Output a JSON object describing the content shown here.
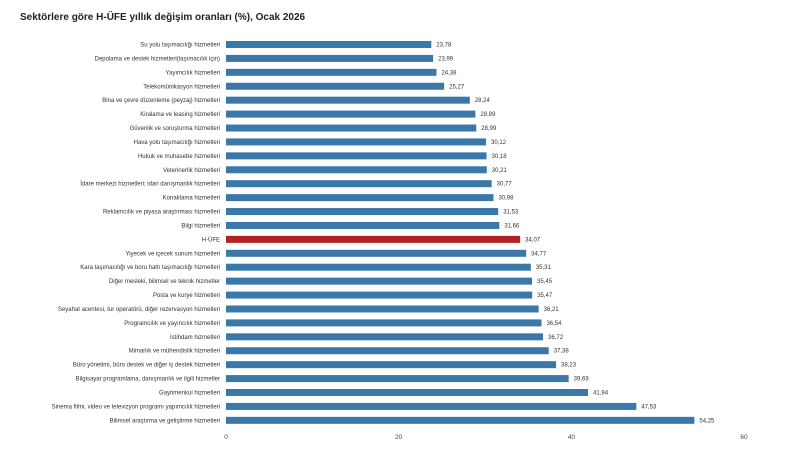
{
  "chart_data": {
    "type": "bar",
    "orientation": "horizontal",
    "title": "Sektörlere göre H-ÜFE yıllık değişim oranları (%), Ocak 2026",
    "categories": [
      "Su yolu taşımacılığı hizmetleri",
      "Depolama ve destek hizmetleri(taşımacılık için)",
      "Yayımcılık hizmetleri",
      "Telekomünikasyon hizmetleri",
      "Bina ve çevre düzenleme (peyzaj) hizmetleri",
      "Kiralama ve leasing hizmetleri",
      "Güvenlik ve soruşturma hizmetleri",
      "Hava yolu taşımacılığı hizmetleri",
      "Hukuk ve muhasebe hizmetleri",
      "Veterinerlik hizmetleri",
      "İdare merkezi hizmetleri; idari danışmanlık hizmetleri",
      "Konaklama hizmetleri",
      "Reklamcılık ve piyasa araştırması hizmetleri",
      "Bilgi hizmetleri",
      "H-ÜFE",
      "Yiyecek ve içecek sunum hizmetleri",
      "Kara taşımacılığı ve boru hattı taşımacılığı hizmetleri",
      "Diğer mesleki, bilimsel ve teknik hizmetler",
      "Posta ve kurye hizmetleri",
      "Seyahat acentesi, tur operatörü, diğer rezervasyon hizmetleri",
      "Programcılık ve yayıncılık hizmetleri",
      "İstihdam hizmetleri",
      "Mimarlık ve mühendislik hizmetleri",
      "Büro yönetimi, büro destek ve diğer iş destek hizmetleri",
      "Bilgisayar programlama, danışmanlık ve ilgili hizmetler",
      "Gayrimenkul hizmetleri",
      "Sinema filmi, video ve televizyon programı yapımcılık hizmetleri",
      "Bilimsel araştırma ve geliştirme hizmetleri"
    ],
    "values": [
      23.78,
      23.99,
      24.38,
      25.27,
      28.24,
      28.89,
      28.99,
      30.12,
      30.18,
      30.21,
      30.77,
      30.98,
      31.53,
      31.66,
      34.07,
      34.77,
      35.31,
      35.45,
      35.47,
      36.21,
      36.54,
      36.72,
      37.38,
      38.23,
      39.69,
      41.94,
      47.53,
      54.25
    ],
    "value_labels": [
      "23,78",
      "23,99",
      "24,38",
      "25,27",
      "28,24",
      "28,89",
      "28,99",
      "30,12",
      "30,18",
      "30,21",
      "30,77",
      "30,98",
      "31,53",
      "31,66",
      "34,07",
      "34,77",
      "35,31",
      "35,45",
      "35,47",
      "36,21",
      "36,54",
      "36,72",
      "37,38",
      "38,23",
      "39,69",
      "41,94",
      "47,53",
      "54,25"
    ],
    "highlight_index": 14,
    "xlim": [
      0,
      60
    ],
    "x_ticks": [
      "0",
      "20",
      "40",
      "60"
    ],
    "x_tick_values": [
      0,
      20,
      40,
      60
    ],
    "grid": false,
    "colors": {
      "bar": "#3b78aa",
      "highlight": "#b22222",
      "text": "#333333"
    }
  }
}
